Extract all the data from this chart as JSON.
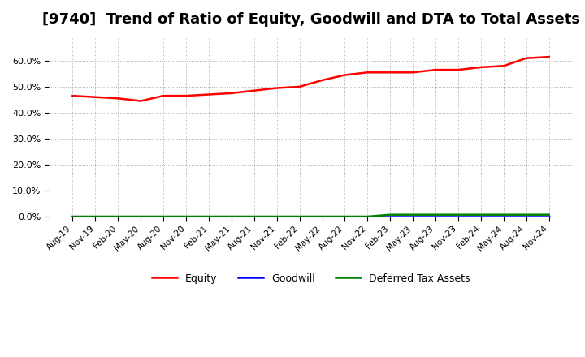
{
  "title": "[9740]  Trend of Ratio of Equity, Goodwill and DTA to Total Assets",
  "x_labels": [
    "Aug-19",
    "Nov-19",
    "Feb-20",
    "May-20",
    "Aug-20",
    "Nov-20",
    "Feb-21",
    "May-21",
    "Aug-21",
    "Nov-21",
    "Feb-22",
    "May-22",
    "Aug-22",
    "Nov-22",
    "Feb-23",
    "May-23",
    "Aug-23",
    "Nov-23",
    "Feb-24",
    "May-24",
    "Aug-24",
    "Nov-24"
  ],
  "equity": [
    46.5,
    46.0,
    45.5,
    44.5,
    46.5,
    46.5,
    47.0,
    47.5,
    48.5,
    49.5,
    50.0,
    52.5,
    54.5,
    55.5,
    55.5,
    55.5,
    56.5,
    56.5,
    57.5,
    58.0,
    61.0,
    61.5
  ],
  "goodwill": [
    0.0,
    0.0,
    0.0,
    0.0,
    0.0,
    0.0,
    0.0,
    0.0,
    0.0,
    0.0,
    0.0,
    0.0,
    0.0,
    0.0,
    0.0,
    0.0,
    0.0,
    0.0,
    0.0,
    0.0,
    0.0,
    0.0
  ],
  "dta": [
    0.0,
    0.0,
    0.0,
    0.0,
    0.0,
    0.0,
    0.0,
    0.0,
    0.0,
    0.0,
    0.0,
    0.0,
    0.0,
    0.0,
    0.7,
    0.7,
    0.7,
    0.7,
    0.7,
    0.7,
    0.7,
    0.7
  ],
  "equity_color": "#ff0000",
  "goodwill_color": "#0000ff",
  "dta_color": "#008000",
  "ylim": [
    0.0,
    70.0
  ],
  "yticks": [
    0.0,
    10.0,
    20.0,
    30.0,
    40.0,
    50.0,
    60.0
  ],
  "background_color": "#ffffff",
  "grid_color": "#aaaaaa",
  "title_fontsize": 13,
  "legend_labels": [
    "Equity",
    "Goodwill",
    "Deferred Tax Assets"
  ]
}
